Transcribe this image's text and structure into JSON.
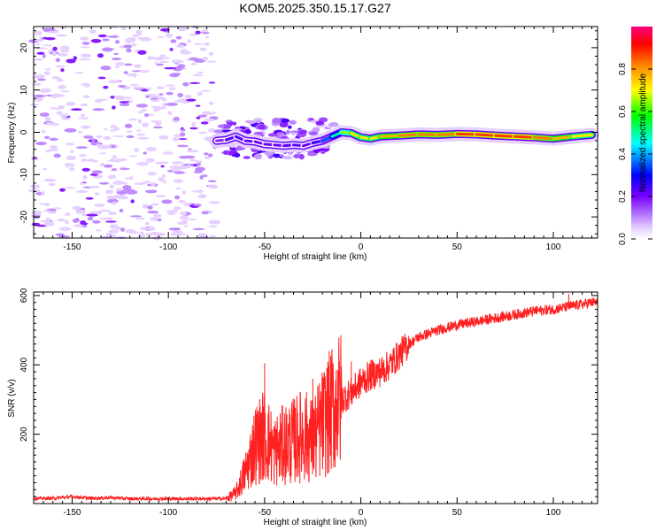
{
  "title": "KOM5.2025.350.15.17.G27",
  "chart_data": [
    {
      "type": "heatmap",
      "xlabel": "Height of straight line (km)",
      "ylabel": "Frequency (Hz)",
      "xlim": [
        -170,
        123
      ],
      "ylim": [
        -25,
        25
      ],
      "xticks": [
        -150,
        -100,
        -50,
        0,
        50,
        100
      ],
      "yticks": [
        -20,
        -10,
        0,
        10,
        20
      ],
      "colorbar": {
        "label": "Normalized spectral amplitude",
        "range": [
          0,
          1
        ],
        "ticks": [
          0.0,
          0.2,
          0.4,
          0.6,
          0.8
        ],
        "colors": [
          "#ffffff",
          "#e6d0ff",
          "#b070ff",
          "#7a00ff",
          "#0000ff",
          "#00ffff",
          "#00ff00",
          "#ffff00",
          "#ff8000",
          "#ff0000",
          "#ff0080"
        ]
      },
      "features": [
        {
          "name": "scattered noise",
          "x_range": [
            -170,
            -76
          ],
          "freq_range": [
            -25,
            25
          ],
          "amplitude": 0.05
        },
        {
          "name": "weak signal onset",
          "x_range": [
            -76,
            -12
          ],
          "freq_center": [
            -2,
            -2.5,
            -3,
            -2.5,
            0
          ],
          "amplitude": 0.25
        },
        {
          "name": "strong carrier",
          "x_range": [
            -12,
            123
          ],
          "freq_center": [
            0,
            -1,
            -0.5,
            -0.8,
            -1.2,
            -0.3
          ],
          "amplitude": 0.9
        }
      ],
      "track": {
        "x": [
          -75,
          -70,
          -65,
          -60,
          -55,
          -50,
          -45,
          -40,
          -35,
          -30,
          -25,
          -20,
          -15,
          -10,
          -5,
          0,
          5,
          10,
          20,
          30,
          40,
          50,
          60,
          70,
          80,
          90,
          100,
          110,
          120
        ],
        "freq": [
          -2,
          -1.8,
          -1,
          -2,
          -2.2,
          -2.8,
          -3,
          -3.2,
          -3,
          -3.2,
          -2.5,
          -2,
          -1,
          0,
          -0.2,
          -1.2,
          -1.5,
          -1,
          -0.8,
          -0.5,
          -0.6,
          -0.4,
          -0.5,
          -0.8,
          -1,
          -1.2,
          -1.5,
          -1,
          -0.6
        ],
        "amplitude": [
          0.15,
          0.2,
          0.25,
          0.22,
          0.2,
          0.2,
          0.22,
          0.2,
          0.25,
          0.2,
          0.22,
          0.3,
          0.4,
          0.6,
          0.7,
          0.75,
          0.7,
          0.75,
          0.8,
          0.85,
          0.8,
          0.85,
          0.9,
          0.85,
          0.9,
          0.85,
          0.8,
          0.75,
          0.7
        ]
      }
    },
    {
      "type": "line",
      "xlabel": "Height of straight line (km)",
      "ylabel": "SNR (v/v)",
      "xlim": [
        -170,
        123
      ],
      "ylim": [
        0,
        610
      ],
      "xticks": [
        -150,
        -100,
        -50,
        0,
        50,
        100
      ],
      "yticks": [
        200,
        400,
        600
      ],
      "color": "#ff2020",
      "series": [
        {
          "name": "SNR",
          "x": [
            -170,
            -160,
            -150,
            -140,
            -130,
            -120,
            -110,
            -100,
            -90,
            -80,
            -70,
            -65,
            -60,
            -55,
            -50,
            -45,
            -40,
            -35,
            -30,
            -25,
            -20,
            -15,
            -10,
            -5,
            0,
            5,
            10,
            15,
            20,
            25,
            30,
            40,
            50,
            60,
            70,
            80,
            90,
            100,
            110,
            120
          ],
          "y": [
            15,
            15,
            20,
            15,
            17,
            14,
            14,
            14,
            14,
            14,
            14,
            30,
            90,
            170,
            200,
            150,
            170,
            180,
            200,
            180,
            230,
            270,
            300,
            320,
            350,
            370,
            380,
            400,
            430,
            460,
            480,
            500,
            515,
            525,
            535,
            545,
            555,
            560,
            570,
            580
          ]
        }
      ],
      "spikes": [
        {
          "x": -50,
          "y": 405
        },
        {
          "x": -25,
          "y": 360
        },
        {
          "x": -12,
          "y": 385
        },
        {
          "x": -5,
          "y": 410
        },
        {
          "x": 108,
          "y": 605
        }
      ]
    }
  ]
}
